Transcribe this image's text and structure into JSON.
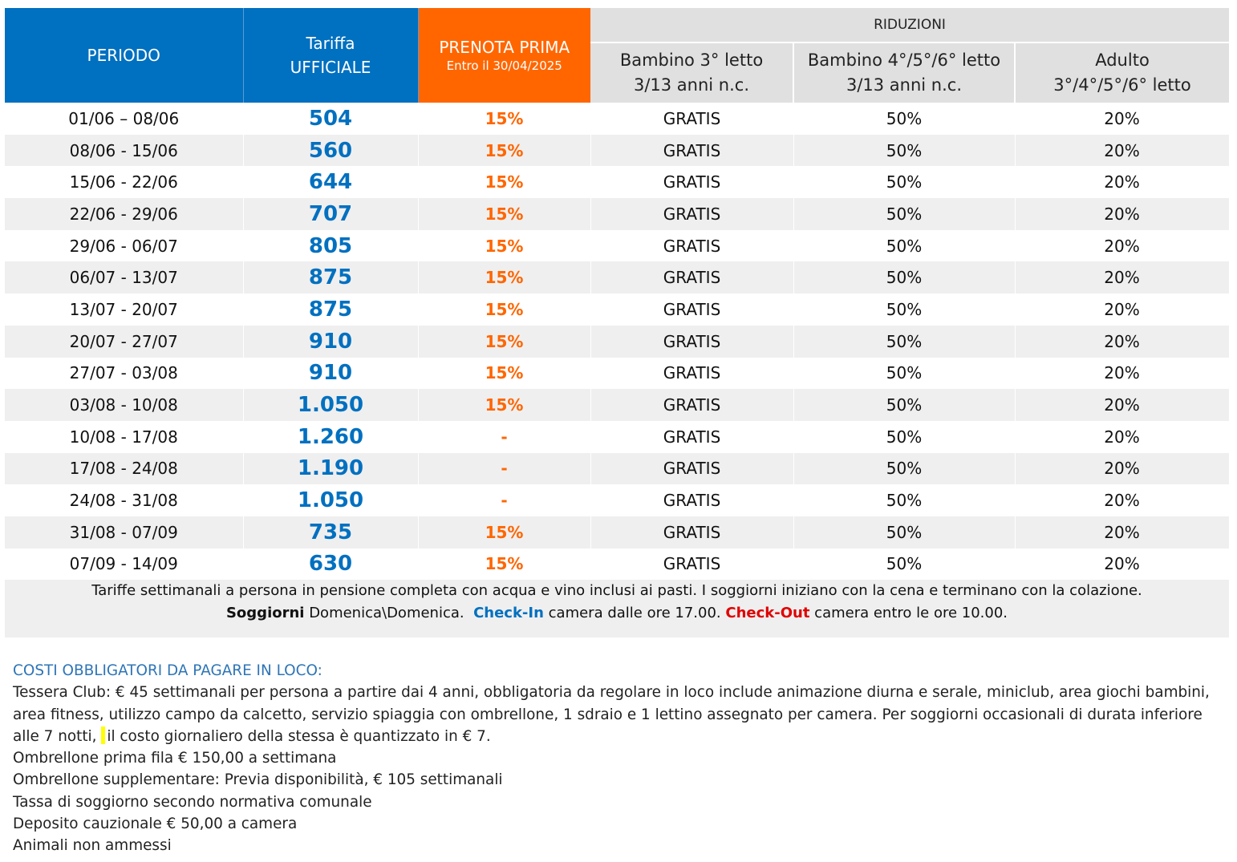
{
  "header": {
    "periodo": "PERIODO",
    "tariffa_line1": "Tariffa",
    "tariffa_line2": "UFFICIALE",
    "prenota_line1": "PRENOTA PRIMA",
    "prenota_line2": "Entro il 30/04/2025",
    "riduzioni": "RIDUZIONI",
    "bambino3_line1": "Bambino 3° letto",
    "bambino3_line2": "3/13 anni n.c.",
    "bambino4_line1": "Bambino 4°/5°/6° letto",
    "bambino4_line2": "3/13 anni n.c.",
    "adulto_line1": "Adulto",
    "adulto_line2": "3°/4°/5°/6° letto"
  },
  "rows": [
    {
      "periodo": "01/06 – 08/06",
      "tariffa": "504",
      "prenota": "15%",
      "b3": "GRATIS",
      "b4": "50%",
      "adulto": "20%"
    },
    {
      "periodo": "08/06 - 15/06",
      "tariffa": "560",
      "prenota": "15%",
      "b3": "GRATIS",
      "b4": "50%",
      "adulto": "20%"
    },
    {
      "periodo": "15/06 - 22/06",
      "tariffa": "644",
      "prenota": "15%",
      "b3": "GRATIS",
      "b4": "50%",
      "adulto": "20%"
    },
    {
      "periodo": "22/06 - 29/06",
      "tariffa": "707",
      "prenota": "15%",
      "b3": "GRATIS",
      "b4": "50%",
      "adulto": "20%"
    },
    {
      "periodo": "29/06 - 06/07",
      "tariffa": "805",
      "prenota": "15%",
      "b3": "GRATIS",
      "b4": "50%",
      "adulto": "20%"
    },
    {
      "periodo": "06/07 - 13/07",
      "tariffa": "875",
      "prenota": "15%",
      "b3": "GRATIS",
      "b4": "50%",
      "adulto": "20%"
    },
    {
      "periodo": "13/07 - 20/07",
      "tariffa": "875",
      "prenota": "15%",
      "b3": "GRATIS",
      "b4": "50%",
      "adulto": "20%"
    },
    {
      "periodo": "20/07 - 27/07",
      "tariffa": "910",
      "prenota": "15%",
      "b3": "GRATIS",
      "b4": "50%",
      "adulto": "20%"
    },
    {
      "periodo": "27/07 - 03/08",
      "tariffa": "910",
      "prenota": "15%",
      "b3": "GRATIS",
      "b4": "50%",
      "adulto": "20%"
    },
    {
      "periodo": "03/08 - 10/08",
      "tariffa": "1.050",
      "prenota": "15%",
      "b3": "GRATIS",
      "b4": "50%",
      "adulto": "20%"
    },
    {
      "periodo": "10/08 - 17/08",
      "tariffa": "1.260",
      "prenota": "-",
      "b3": "GRATIS",
      "b4": "50%",
      "adulto": "20%"
    },
    {
      "periodo": "17/08 - 24/08",
      "tariffa": "1.190",
      "prenota": "-",
      "b3": "GRATIS",
      "b4": "50%",
      "adulto": "20%"
    },
    {
      "periodo": "24/08 - 31/08",
      "tariffa": "1.050",
      "prenota": "-",
      "b3": "GRATIS",
      "b4": "50%",
      "adulto": "20%"
    },
    {
      "periodo": "31/08 - 07/09",
      "tariffa": "735",
      "prenota": "15%",
      "b3": "GRATIS",
      "b4": "50%",
      "adulto": "20%"
    },
    {
      "periodo": "07/09 - 14/09",
      "tariffa": "630",
      "prenota": "15%",
      "b3": "GRATIS",
      "b4": "50%",
      "adulto": "20%"
    }
  ],
  "note": {
    "line1": "Tariffe settimanali a persona in pensione completa con acqua e vino inclusi ai pasti. I soggiorni iniziano con la cena e terminano con la colazione.",
    "soggiorni_label": "Soggiorni",
    "soggiorni_text": " Domenica\\Domenica.  ",
    "checkin_label": "Check-In",
    "checkin_text": " camera dalle ore 17.00. ",
    "checkout_label": "Check-Out",
    "checkout_text": " camera entro le ore 10.00."
  },
  "costs": {
    "title": "COSTI OBBLIGATORI DA PAGARE IN LOCO:",
    "tessera_part1": "Tessera Club: € 45 settimanali per persona a partire dai 4 anni, obbligatoria da regolare in loco include animazione diurna e serale, miniclub, area giochi bambini, area fitness, utilizzo campo da calcetto, servizio spiaggia con ombrellone, 1 sdraio e 1 lettino assegnato per camera. Per soggiorni occasionali di durata inferiore alle 7 notti,",
    "tessera_part2": "il costo giornaliero della stessa è quantizzato in € 7.",
    "items": [
      "Ombrellone prima fila € 150,00 a settimana",
      "Ombrellone supplementare: Previa disponibilità, € 105 settimanali",
      "Tassa di soggiorno secondo normativa comunale",
      "Deposito cauzionale € 50,00 a camera",
      "Animali non ammessi"
    ]
  },
  "colors": {
    "blue": "#0070c0",
    "orange": "#ff6600",
    "header_grey": "#e0e0e0",
    "stripe_grey": "#efefef",
    "red": "#e00000"
  }
}
